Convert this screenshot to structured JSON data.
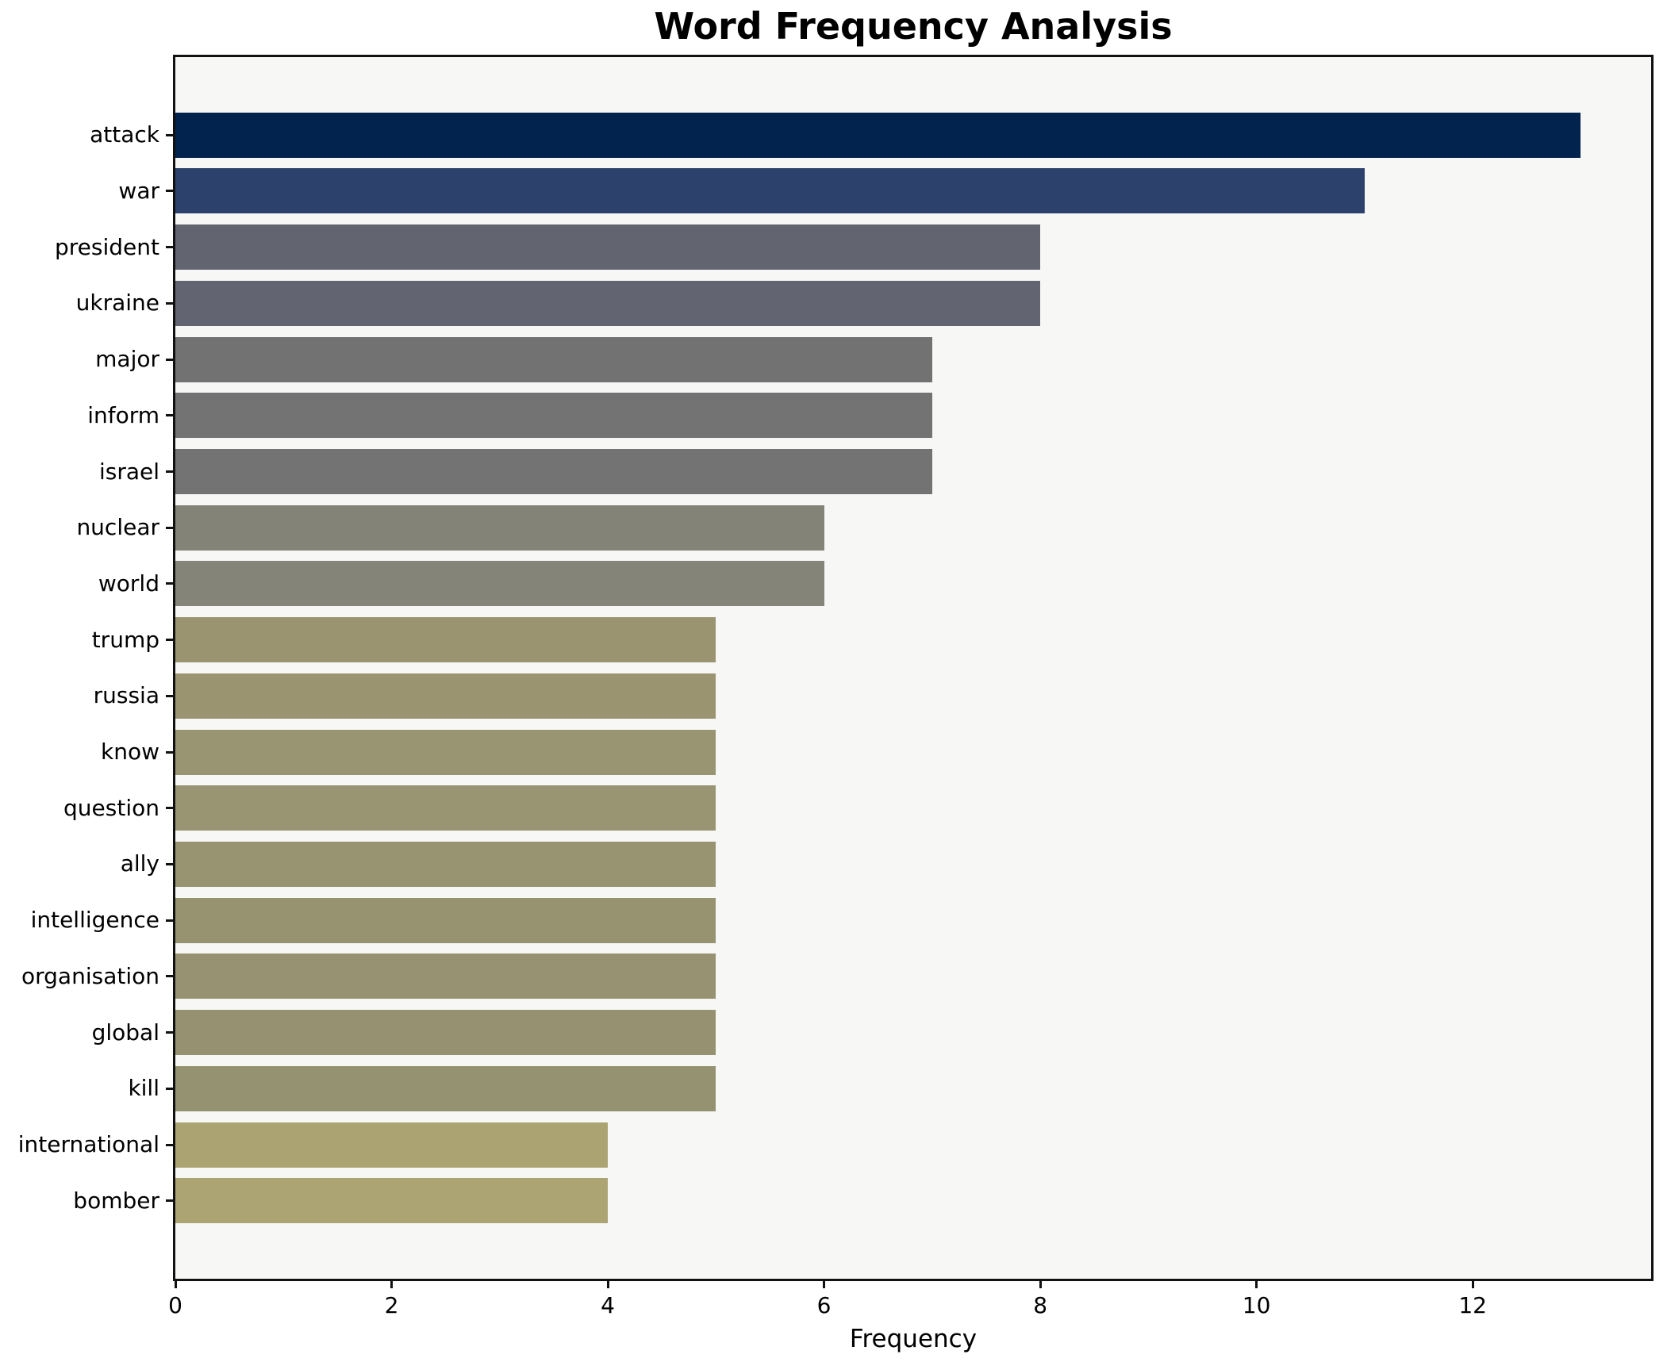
{
  "chart_data": {
    "type": "bar",
    "orientation": "horizontal",
    "title": "Word Frequency Analysis",
    "xlabel": "Frequency",
    "ylabel": "",
    "categories": [
      "attack",
      "war",
      "president",
      "ukraine",
      "major",
      "inform",
      "israel",
      "nuclear",
      "world",
      "trump",
      "russia",
      "know",
      "question",
      "ally",
      "intelligence",
      "organisation",
      "global",
      "kill",
      "international",
      "bomber"
    ],
    "values": [
      13,
      11,
      8,
      8,
      7,
      7,
      7,
      6,
      6,
      5,
      5,
      5,
      5,
      5,
      5,
      5,
      5,
      5,
      4,
      4
    ],
    "bar_colors": [
      "#02234e",
      "#2c416b",
      "#626470",
      "#626571",
      "#717271",
      "#727372",
      "#727372",
      "#848378",
      "#858479",
      "#9a9470",
      "#9a9471",
      "#999471",
      "#999471",
      "#989371",
      "#979371",
      "#979271",
      "#969271",
      "#959271",
      "#aca372",
      "#ada473"
    ],
    "xticks": [
      "0",
      "2",
      "4",
      "6",
      "8",
      "10",
      "12"
    ],
    "xtick_values": [
      0,
      2,
      4,
      6,
      8,
      10,
      12
    ],
    "xlim": [
      0,
      13.65
    ],
    "grid": false,
    "legend": null,
    "plot_background": "#f7f7f5",
    "figure_background": "#ffffff",
    "spine_color": "#111111"
  }
}
